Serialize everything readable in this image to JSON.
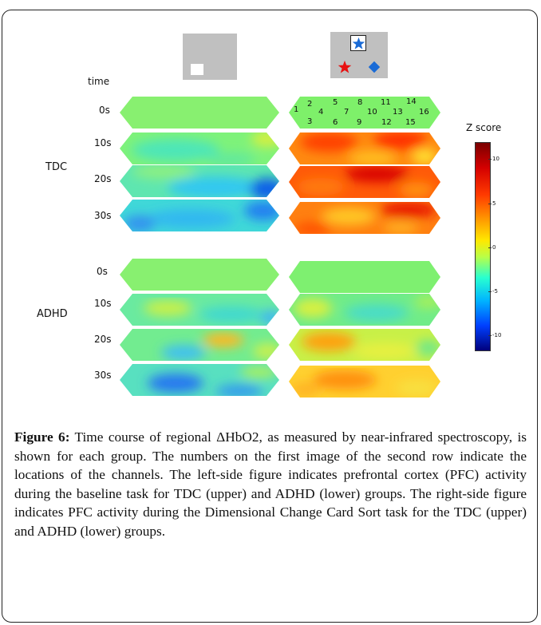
{
  "figure": {
    "time_label": "time",
    "groups": {
      "tdc": "TDC",
      "adhd": "ADHD"
    },
    "tdc_times": [
      "0s",
      "10s",
      "20s",
      "30s"
    ],
    "adhd_times": [
      "0s",
      "10s",
      "20s",
      "30s"
    ],
    "channel_numbers": [
      "1",
      "2",
      "3",
      "4",
      "5",
      "6",
      "7",
      "8",
      "9",
      "10",
      "11",
      "12",
      "13",
      "14",
      "15",
      "16"
    ],
    "colorbar": {
      "title": "Z score",
      "ticks": [
        "10",
        "5",
        "0",
        "-5",
        "-10"
      ],
      "range": [
        -12,
        12
      ]
    },
    "task_icons": {
      "baseline": "white-square-icon",
      "dccs_top": "blue-star-icon",
      "dccs_left": "red-star-icon",
      "dccs_right": "blue-diamond-icon"
    },
    "colors": {
      "background_green": "#7ef06a",
      "star_blue": "#1a6bd6",
      "star_red": "#e81010",
      "panel_gray": "#c0c0c0"
    }
  },
  "caption": {
    "label": "Figure 6:",
    "text": " Time course of regional ΔHbO2, as measured by near-infrared spectroscopy, is shown for each group. The numbers on the first image of the second row indicate the locations of the channels. The left-side figure indicates prefrontal cortex (PFC) activity during the baseline task for TDC (upper) and ADHD (lower) groups. The right-side figure indicates PFC activity during the Dimensional Change Card Sort task for the TDC (upper) and ADHD (lower) groups."
  }
}
